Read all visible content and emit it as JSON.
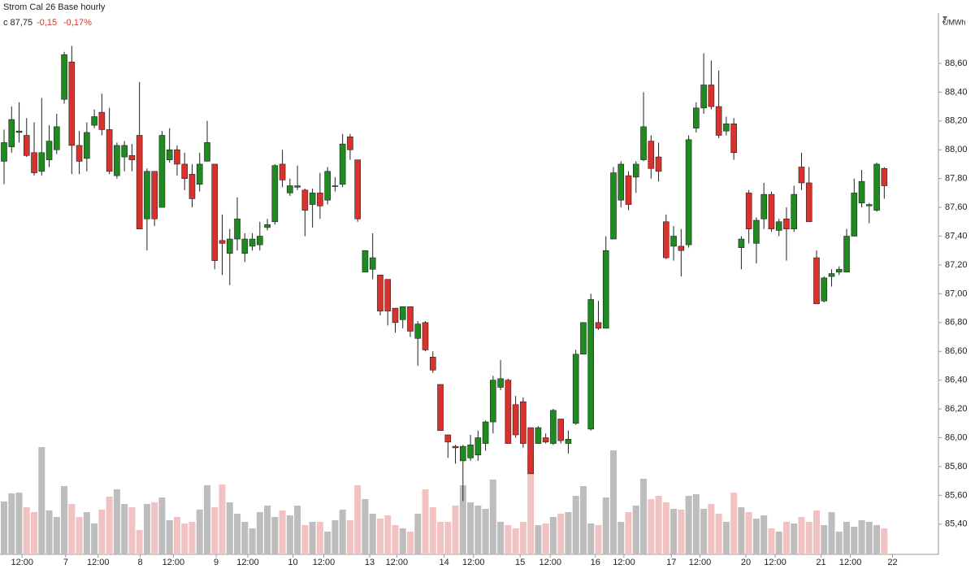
{
  "chart_data": {
    "type": "candlestick",
    "title": "Strom Cal 26 Base hourly",
    "last_label": "c 87,75",
    "change": "-0,15",
    "change_pct": "-0,17%",
    "y_label": "€/MWh",
    "up_color": "#1f8a1f",
    "down_color": "#d9322c",
    "volume_up_color": "#bdbdbd",
    "volume_down_color": "#f0c2c2",
    "ylim": [
      85.19,
      89.04
    ],
    "yticks": [
      {
        "value": 85.4,
        "label": "85,40"
      },
      {
        "value": 85.6,
        "label": "85,60"
      },
      {
        "value": 85.8,
        "label": "85,80"
      },
      {
        "value": 86.0,
        "label": "86,00"
      },
      {
        "value": 86.2,
        "label": "86,20"
      },
      {
        "value": 86.4,
        "label": "86,40"
      },
      {
        "value": 86.6,
        "label": "86,60"
      },
      {
        "value": 86.8,
        "label": "86,80"
      },
      {
        "value": 87.0,
        "label": "87,00"
      },
      {
        "value": 87.2,
        "label": "87,20"
      },
      {
        "value": 87.4,
        "label": "87,40"
      },
      {
        "value": 87.6,
        "label": "87,60"
      },
      {
        "value": 87.8,
        "label": "87,80"
      },
      {
        "value": 88.0,
        "label": "88,00"
      },
      {
        "value": 88.2,
        "label": "88,20"
      },
      {
        "value": 88.4,
        "label": "88,40"
      },
      {
        "value": 88.6,
        "label": "88,60"
      }
    ],
    "xlim": [
      -0.54,
      124.2
    ],
    "xticks": [
      {
        "value": 2.4,
        "label": "12:00"
      },
      {
        "value": 8.2,
        "label": "7"
      },
      {
        "value": 12.5,
        "label": "12:00"
      },
      {
        "value": 18.1,
        "label": "8"
      },
      {
        "value": 22.5,
        "label": "12:00"
      },
      {
        "value": 28.2,
        "label": "9"
      },
      {
        "value": 32.4,
        "label": "12:00"
      },
      {
        "value": 38.4,
        "label": "10"
      },
      {
        "value": 42.5,
        "label": "12:00"
      },
      {
        "value": 48.6,
        "label": "13"
      },
      {
        "value": 52.2,
        "label": "12:00"
      },
      {
        "value": 58.5,
        "label": "14"
      },
      {
        "value": 62.4,
        "label": "12:00"
      },
      {
        "value": 68.6,
        "label": "15"
      },
      {
        "value": 72.6,
        "label": "12:00"
      },
      {
        "value": 78.6,
        "label": "16"
      },
      {
        "value": 82.4,
        "label": "12:00"
      },
      {
        "value": 88.7,
        "label": "17"
      },
      {
        "value": 92.5,
        "label": "12:00"
      },
      {
        "value": 98.6,
        "label": "20"
      },
      {
        "value": 102.5,
        "label": "12:00"
      },
      {
        "value": 108.6,
        "label": "21"
      },
      {
        "value": 112.5,
        "label": "12:00"
      },
      {
        "value": 118.1,
        "label": "22"
      }
    ],
    "open": [
      87.92,
      88.02,
      88.12,
      88.1,
      87.98,
      87.85,
      87.93,
      88.0,
      88.35,
      88.61,
      88.03,
      87.94,
      88.17,
      88.26,
      88.14,
      87.82,
      87.95,
      87.96,
      88.1,
      87.52,
      87.85,
      87.6,
      87.93,
      88.0,
      87.9,
      87.83,
      87.76,
      87.92,
      87.9,
      87.37,
      87.28,
      87.38,
      87.28,
      87.33,
      87.34,
      87.46,
      87.5,
      87.9,
      87.7,
      87.74,
      87.72,
      87.62,
      87.7,
      87.65,
      87.75,
      87.76,
      88.09,
      87.93,
      87.15,
      87.17,
      87.13,
      87.1,
      86.9,
      86.82,
      86.91,
      86.69,
      86.8,
      86.56,
      86.37,
      86.02,
      85.94,
      85.84,
      85.86,
      85.88,
      85.96,
      86.11,
      86.35,
      86.4,
      86.23,
      86.25,
      86.07,
      85.96,
      86.0,
      85.96,
      86.13,
      85.96,
      86.1,
      86.58,
      86.06,
      86.8,
      86.76,
      87.38,
      87.65,
      87.82,
      87.81,
      87.93,
      88.06,
      87.95,
      87.5,
      87.33,
      87.33,
      87.34,
      88.15,
      88.29,
      88.45,
      88.3,
      88.13,
      88.18,
      87.32,
      87.7,
      87.35,
      87.52,
      87.69,
      87.44,
      87.52,
      87.45,
      87.88,
      87.77,
      87.25,
      86.95,
      87.12,
      87.15,
      87.15,
      87.4,
      87.63,
      87.61,
      87.58,
      87.87
    ],
    "high": [
      88.14,
      88.3,
      88.33,
      88.22,
      88.19,
      88.36,
      88.17,
      88.25,
      88.68,
      88.72,
      88.13,
      88.19,
      88.28,
      88.39,
      88.29,
      88.05,
      88.06,
      88.04,
      88.47,
      87.87,
      87.85,
      88.13,
      88.15,
      88.03,
      87.98,
      87.9,
      87.98,
      88.2,
      87.9,
      87.55,
      87.45,
      87.67,
      87.42,
      87.42,
      87.5,
      87.52,
      87.9,
      88.0,
      87.8,
      87.89,
      87.73,
      87.73,
      87.84,
      87.88,
      87.81,
      88.11,
      88.11,
      87.93,
      87.3,
      87.42,
      87.13,
      87.1,
      86.9,
      86.91,
      86.91,
      86.81,
      86.81,
      86.6,
      86.37,
      86.02,
      85.95,
      85.95,
      86.02,
      86.05,
      86.12,
      86.43,
      86.54,
      86.41,
      86.29,
      86.28,
      86.07,
      86.08,
      86.03,
      86.2,
      86.13,
      86.05,
      86.61,
      86.8,
      87.0,
      86.95,
      87.4,
      87.88,
      87.92,
      87.85,
      87.92,
      88.4,
      88.1,
      88.05,
      87.55,
      87.47,
      87.45,
      88.1,
      88.33,
      88.67,
      88.62,
      88.55,
      88.23,
      88.22,
      87.4,
      87.72,
      87.53,
      87.77,
      87.71,
      87.52,
      87.6,
      87.75,
      87.98,
      87.88,
      87.3,
      87.12,
      87.17,
      87.19,
      87.45,
      87.8,
      87.86,
      87.63,
      87.91,
      87.88
    ],
    "low": [
      87.76,
      87.98,
      88.05,
      87.95,
      87.82,
      87.82,
      87.88,
      87.97,
      88.32,
      87.83,
      87.83,
      87.85,
      88.15,
      88.1,
      87.83,
      87.8,
      87.85,
      87.85,
      87.45,
      87.3,
      87.47,
      87.6,
      87.91,
      87.82,
      87.72,
      87.6,
      87.71,
      87.92,
      87.17,
      87.13,
      87.06,
      87.3,
      87.22,
      87.3,
      87.3,
      87.44,
      87.48,
      87.74,
      87.68,
      87.72,
      87.4,
      87.46,
      87.52,
      87.62,
      87.71,
      87.74,
      87.93,
      87.5,
      87.15,
      87.1,
      86.85,
      86.78,
      86.73,
      86.76,
      86.7,
      86.5,
      86.6,
      86.45,
      86.05,
      85.86,
      85.82,
      85.56,
      85.84,
      85.84,
      85.91,
      86.03,
      86.33,
      85.96,
      86.0,
      85.93,
      85.75,
      85.96,
      85.96,
      85.95,
      85.96,
      85.89,
      86.09,
      86.58,
      86.05,
      86.75,
      86.76,
      87.38,
      87.6,
      87.58,
      87.7,
      87.92,
      87.8,
      87.78,
      87.24,
      87.23,
      87.12,
      87.32,
      88.12,
      88.25,
      88.28,
      88.08,
      88.1,
      87.93,
      87.17,
      87.35,
      87.21,
      87.45,
      87.43,
      87.4,
      87.23,
      87.43,
      87.72,
      87.5,
      86.93,
      86.94,
      87.05,
      87.13,
      87.15,
      87.4,
      87.6,
      87.49,
      87.57,
      87.66
    ],
    "close": [
      88.05,
      88.21,
      88.13,
      87.96,
      87.84,
      87.98,
      88.06,
      88.16,
      88.66,
      88.03,
      87.92,
      88.12,
      88.23,
      88.14,
      87.85,
      88.03,
      88.03,
      87.93,
      87.45,
      87.85,
      87.52,
      88.1,
      88.0,
      87.9,
      87.8,
      87.66,
      87.9,
      88.05,
      87.23,
      87.35,
      87.38,
      87.52,
      87.38,
      87.38,
      87.4,
      87.48,
      87.89,
      87.79,
      87.75,
      87.75,
      87.58,
      87.7,
      87.61,
      87.85,
      87.75,
      88.04,
      88.0,
      87.52,
      87.3,
      87.25,
      86.88,
      86.88,
      86.8,
      86.91,
      86.74,
      86.79,
      86.61,
      86.47,
      86.05,
      85.97,
      85.93,
      85.94,
      85.95,
      86.0,
      86.11,
      86.4,
      86.41,
      85.96,
      86.02,
      85.96,
      85.75,
      86.07,
      85.97,
      86.19,
      85.98,
      85.99,
      86.58,
      86.8,
      86.96,
      86.76,
      87.3,
      87.84,
      87.9,
      87.62,
      87.9,
      88.16,
      87.87,
      87.85,
      87.25,
      87.4,
      87.3,
      88.07,
      88.29,
      88.45,
      88.3,
      88.1,
      88.18,
      87.98,
      87.38,
      87.45,
      87.51,
      87.69,
      87.45,
      87.5,
      87.45,
      87.69,
      87.77,
      87.5,
      86.93,
      87.11,
      87.14,
      87.17,
      87.4,
      87.7,
      87.78,
      87.62,
      87.9,
      87.75
    ],
    "volume": [
      65,
      75,
      76,
      58,
      52,
      132,
      54,
      46,
      84,
      62,
      46,
      52,
      38,
      55,
      71,
      80,
      62,
      58,
      30,
      62,
      64,
      70,
      42,
      46,
      38,
      40,
      55,
      85,
      58,
      86,
      64,
      50,
      40,
      32,
      52,
      60,
      46,
      54,
      48,
      60,
      36,
      40,
      40,
      28,
      42,
      55,
      42,
      85,
      68,
      50,
      44,
      48,
      36,
      32,
      28,
      50,
      80,
      58,
      40,
      40,
      60,
      85,
      64,
      60,
      56,
      92,
      40,
      36,
      32,
      40,
      120,
      36,
      38,
      46,
      50,
      52,
      72,
      84,
      38,
      36,
      70,
      128,
      40,
      52,
      60,
      93,
      68,
      72,
      64,
      56,
      55,
      72,
      74,
      56,
      62,
      50,
      40,
      76,
      58,
      52,
      44,
      48,
      32,
      28,
      40,
      38,
      46,
      40,
      54,
      36,
      52,
      28,
      40,
      34,
      42,
      40,
      36,
      32
    ]
  }
}
